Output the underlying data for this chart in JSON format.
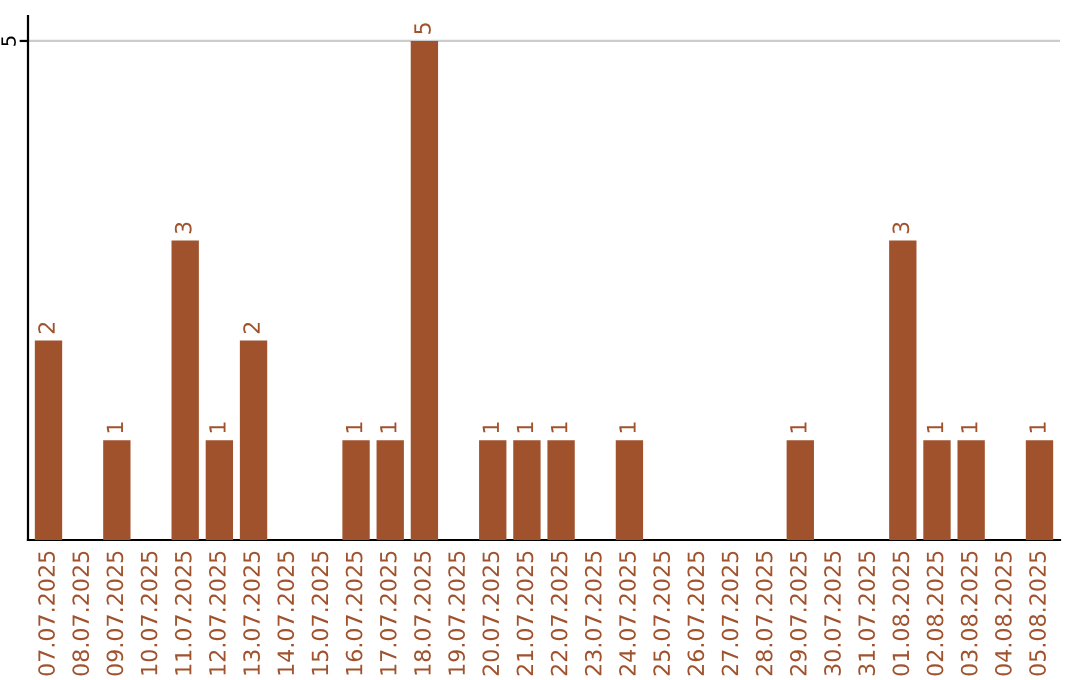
{
  "chart_data": {
    "type": "bar",
    "categories": [
      "07.07.2025",
      "08.07.2025",
      "09.07.2025",
      "10.07.2025",
      "11.07.2025",
      "12.07.2025",
      "13.07.2025",
      "14.07.2025",
      "15.07.2025",
      "16.07.2025",
      "17.07.2025",
      "18.07.2025",
      "19.07.2025",
      "20.07.2025",
      "21.07.2025",
      "22.07.2025",
      "23.07.2025",
      "24.07.2025",
      "25.07.2025",
      "26.07.2025",
      "27.07.2025",
      "28.07.2025",
      "29.07.2025",
      "30.07.2025",
      "31.07.2025",
      "01.08.2025",
      "02.08.2025",
      "03.08.2025",
      "04.08.2025",
      "05.08.2025"
    ],
    "values": [
      2,
      0,
      1,
      0,
      3,
      1,
      2,
      0,
      0,
      1,
      1,
      5,
      0,
      1,
      1,
      1,
      0,
      1,
      0,
      0,
      0,
      0,
      1,
      0,
      0,
      3,
      1,
      1,
      0,
      1
    ],
    "value_labels": [
      "2",
      null,
      "1",
      null,
      "3",
      "1",
      "2",
      null,
      null,
      "1",
      "1",
      "5",
      null,
      "1",
      "1",
      "1",
      null,
      "1",
      null,
      null,
      null,
      null,
      "1",
      null,
      null,
      "3",
      "1",
      "1",
      null,
      "1"
    ],
    "color": "#a0522d",
    "ylim": [
      0,
      5.25
    ],
    "yticks": [
      5
    ],
    "grid": "y"
  }
}
